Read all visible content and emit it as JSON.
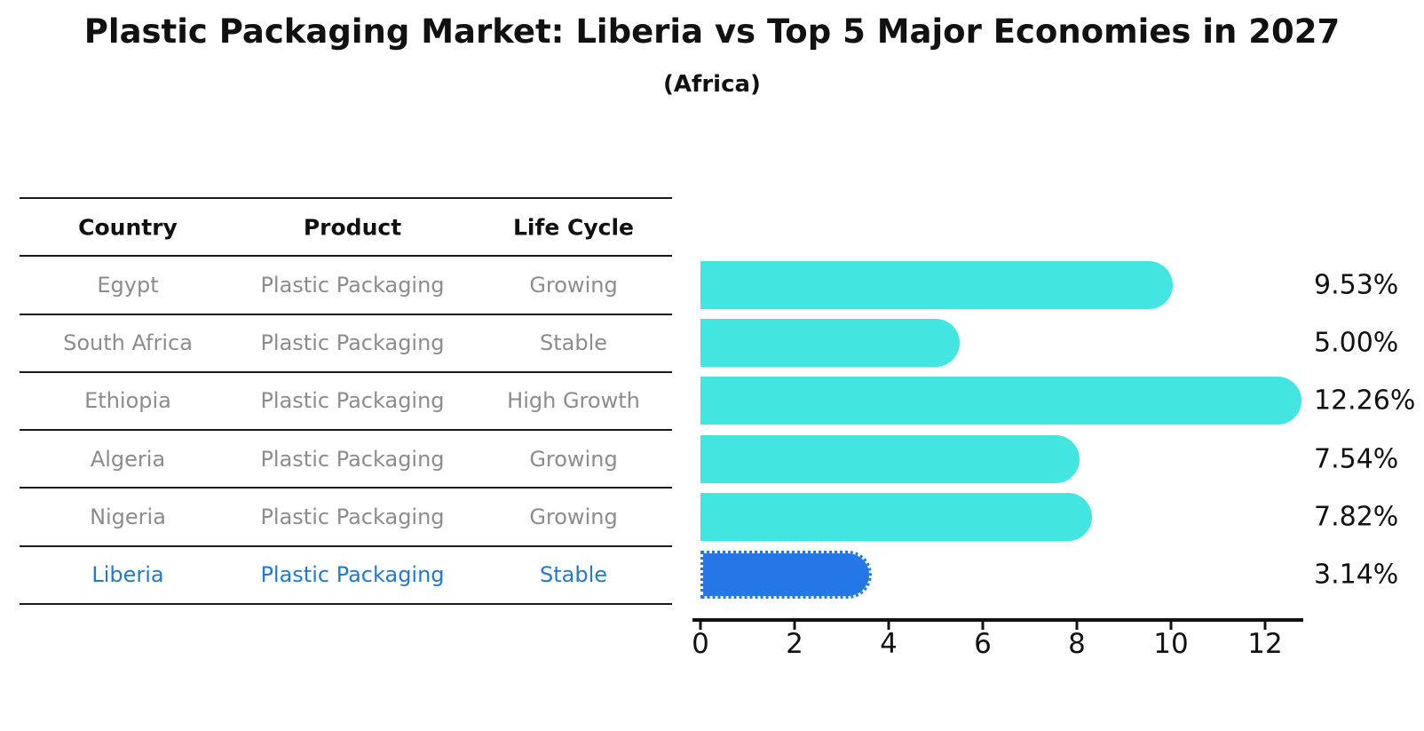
{
  "title": "Plastic Packaging Market: Liberia vs Top 5 Major Economies in 2027",
  "subtitle": "(Africa)",
  "table": {
    "headers": [
      "Country",
      "Product",
      "Life Cycle"
    ],
    "rows": [
      [
        "Egypt",
        "Plastic Packaging",
        "Growing"
      ],
      [
        "South Africa",
        "Plastic Packaging",
        "Stable"
      ],
      [
        "Ethiopia",
        "Plastic Packaging",
        "High Growth"
      ],
      [
        "Algeria",
        "Plastic Packaging",
        "Growing"
      ],
      [
        "Nigeria",
        "Plastic Packaging",
        "Growing"
      ],
      [
        "Liberia",
        "Plastic Packaging",
        "Stable"
      ]
    ],
    "highlight_row": 5
  },
  "chart_data": {
    "type": "bar",
    "orientation": "horizontal",
    "title": "Plastic Packaging Market: Liberia vs Top 5 Major Economies in 2027",
    "subtitle": "(Africa)",
    "categories": [
      "Egypt",
      "South Africa",
      "Ethiopia",
      "Algeria",
      "Nigeria",
      "Liberia"
    ],
    "values": [
      9.53,
      5.0,
      12.26,
      7.54,
      7.82,
      3.14
    ],
    "labels": [
      "9.53%",
      "5.00%",
      "12.26%",
      "7.54%",
      "7.82%",
      "3.14%"
    ],
    "xticks": [
      0,
      2,
      4,
      6,
      8,
      10,
      12
    ],
    "xlim": [
      0,
      12.8
    ],
    "grid": false,
    "legend": false,
    "bar_color": "#42e5e0",
    "highlight_color": "#2577e8",
    "highlight_index": 5
  },
  "colors": {
    "text_primary": "#111111",
    "text_muted": "#8c8c8c",
    "highlight_text": "#2379cd",
    "axis": "#111111"
  }
}
